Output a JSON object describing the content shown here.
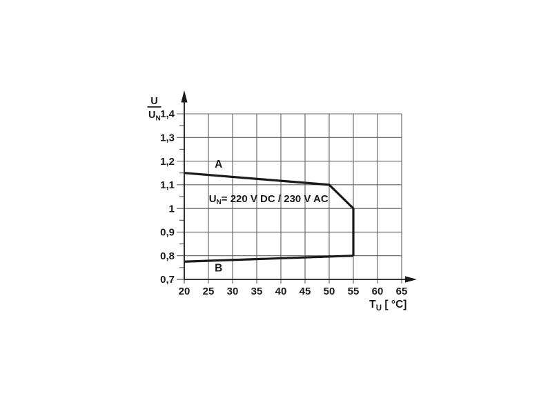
{
  "page": {
    "background": "#ffffff"
  },
  "chart_data": {
    "type": "line",
    "title": "",
    "xlabel": {
      "pre": "T",
      "sub": "U",
      "post": " [ °C]"
    },
    "ylabel": {
      "numerator": "U",
      "denominator": "U",
      "denominator_sub": "N"
    },
    "xlim": [
      20,
      65
    ],
    "ylim": [
      0.7,
      1.4
    ],
    "grid": true,
    "x_ticks": [
      20,
      25,
      30,
      35,
      40,
      45,
      50,
      55,
      60,
      65
    ],
    "x_tick_labels": [
      "20",
      "25",
      "30",
      "35",
      "40",
      "45",
      "50",
      "55",
      "60",
      "65"
    ],
    "y_major_ticks": [
      0.7,
      0.8,
      0.9,
      1.0,
      1.1,
      1.2,
      1.3,
      1.4
    ],
    "y_tick_labels": [
      "0,7",
      "0,8",
      "0,9",
      "1",
      "1,1",
      "1,2",
      "1,3",
      "1,4"
    ],
    "y_minor_ticks": [
      0.75,
      0.85,
      0.95,
      1.05,
      1.15,
      1.25,
      1.35
    ],
    "series": [
      {
        "name": "A",
        "points": [
          [
            20,
            1.15
          ],
          [
            50,
            1.1
          ],
          [
            55,
            1.0
          ],
          [
            55,
            0.8
          ]
        ],
        "label_at": [
          27.1,
          1.172
        ]
      },
      {
        "name": "B",
        "points": [
          [
            20,
            0.775
          ],
          [
            55,
            0.8
          ]
        ],
        "label_at": [
          27.1,
          0.733
        ]
      }
    ],
    "annotation": {
      "pre": "U",
      "sub": "N",
      "post": "= 220 V DC / 230 V AC",
      "at": [
        25.1,
        1.027
      ]
    },
    "colors": {
      "curve": "#1a1a1a",
      "grid": "#5f5f5f",
      "axis": "#1a1a1a",
      "text": "#1a1a1a",
      "background": "#ffffff"
    }
  }
}
